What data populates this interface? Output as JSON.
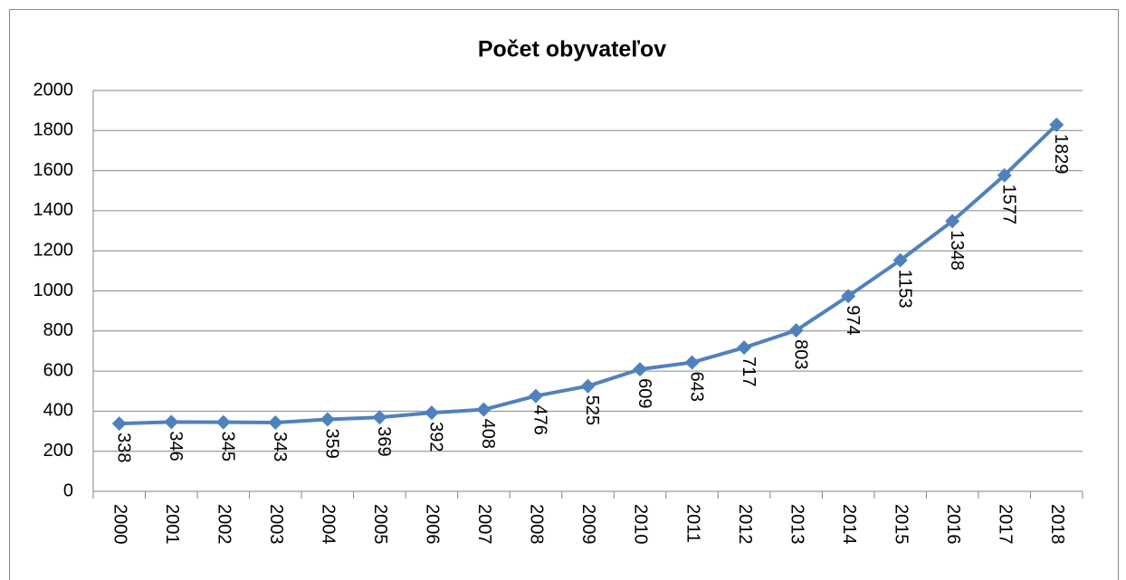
{
  "chart_data": {
    "type": "line",
    "title": "Počet obyvateľov",
    "categories": [
      "2000",
      "2001",
      "2002",
      "2003",
      "2004",
      "2005",
      "2006",
      "2007",
      "2008",
      "2009",
      "2010",
      "2011",
      "2012",
      "2013",
      "2014",
      "2015",
      "2016",
      "2017",
      "2018"
    ],
    "series": [
      {
        "name": "Počet obyvateľov",
        "color": "#4f81bd",
        "values": [
          338,
          346,
          345,
          343,
          359,
          369,
          392,
          408,
          476,
          525,
          609,
          643,
          717,
          803,
          974,
          1153,
          1348,
          1577,
          1829
        ]
      }
    ],
    "ylim": [
      0,
      2000
    ],
    "yticks": [
      0,
      200,
      400,
      600,
      800,
      1000,
      1200,
      1400,
      1600,
      1800,
      2000
    ],
    "grid": true
  }
}
